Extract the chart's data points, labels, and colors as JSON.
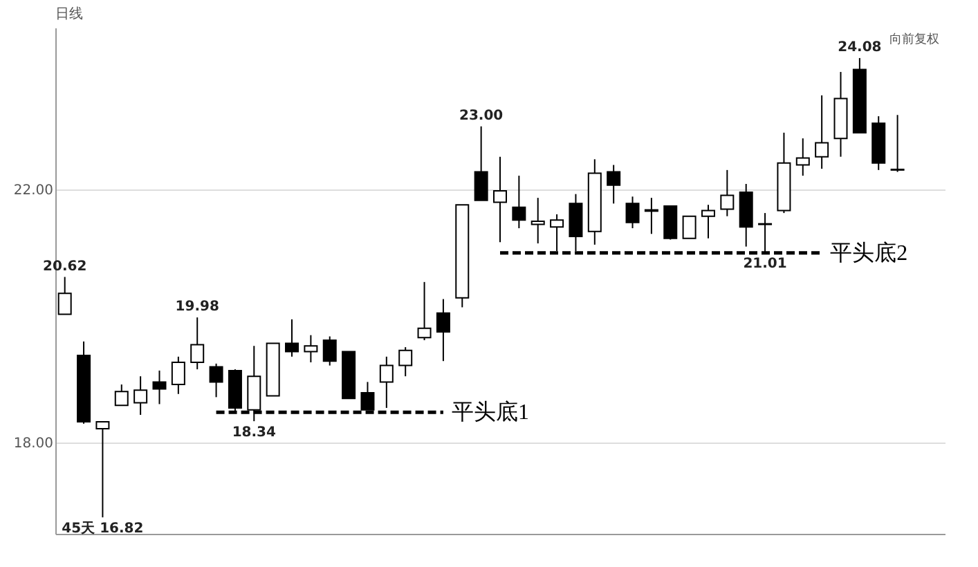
{
  "chart_data": {
    "type": "candlestick",
    "title": "日线",
    "categories": [
      null,
      null,
      null,
      null,
      null,
      null,
      null,
      null,
      null,
      null,
      null,
      null,
      null,
      null,
      null,
      null,
      null,
      null,
      null,
      null,
      null,
      null,
      null,
      null,
      null,
      null,
      null,
      null,
      null,
      null,
      null,
      null,
      null,
      null,
      null,
      null,
      null,
      null,
      null,
      null,
      null,
      null,
      null,
      null,
      null
    ],
    "ohlc": [
      [
        20.03,
        20.62,
        20.03,
        20.36
      ],
      [
        19.38,
        19.6,
        18.3,
        18.33
      ],
      [
        18.22,
        18.33,
        16.82,
        18.33
      ],
      [
        18.59,
        18.92,
        18.59,
        18.81
      ],
      [
        18.63,
        19.05,
        18.44,
        18.83
      ],
      [
        18.96,
        19.14,
        18.61,
        18.85
      ],
      [
        18.92,
        19.36,
        18.77,
        19.27
      ],
      [
        19.27,
        19.98,
        19.16,
        19.55
      ],
      [
        19.2,
        19.25,
        18.72,
        18.96
      ],
      [
        19.14,
        19.16,
        18.5,
        18.55
      ],
      [
        18.52,
        19.53,
        18.34,
        19.05
      ],
      [
        18.74,
        19.57,
        18.74,
        19.57
      ],
      [
        19.57,
        19.95,
        19.36,
        19.44
      ],
      [
        19.44,
        19.7,
        19.27,
        19.53
      ],
      [
        19.62,
        19.68,
        19.22,
        19.29
      ],
      [
        19.44,
        19.44,
        18.7,
        18.7
      ],
      [
        18.79,
        18.96,
        18.52,
        18.52
      ],
      [
        18.96,
        19.36,
        18.55,
        19.22
      ],
      [
        19.22,
        19.51,
        19.05,
        19.46
      ],
      [
        19.66,
        20.54,
        19.62,
        19.81
      ],
      [
        20.05,
        20.27,
        19.29,
        19.75
      ],
      [
        20.29,
        21.76,
        20.14,
        21.76
      ],
      [
        22.28,
        23.0,
        21.83,
        21.83
      ],
      [
        21.8,
        22.52,
        21.17,
        21.98
      ],
      [
        21.72,
        22.22,
        21.39,
        21.52
      ],
      [
        21.45,
        21.87,
        21.15,
        21.5
      ],
      [
        21.41,
        21.61,
        21.03,
        21.52
      ],
      [
        21.78,
        21.93,
        21.03,
        21.26
      ],
      [
        21.34,
        22.48,
        21.13,
        22.26
      ],
      [
        22.28,
        22.39,
        21.78,
        22.07
      ],
      [
        21.78,
        21.89,
        21.39,
        21.48
      ],
      [
        21.66,
        21.87,
        21.3,
        21.68
      ],
      [
        21.74,
        21.74,
        21.21,
        21.23
      ],
      [
        21.23,
        21.58,
        21.23,
        21.58
      ],
      [
        21.58,
        21.76,
        21.23,
        21.67
      ],
      [
        21.69,
        22.31,
        21.58,
        21.91
      ],
      [
        21.96,
        22.09,
        21.1,
        21.41
      ],
      [
        21.46,
        21.63,
        21.01,
        21.45
      ],
      [
        21.67,
        22.9,
        21.63,
        22.42
      ],
      [
        22.39,
        22.81,
        22.22,
        22.5
      ],
      [
        22.52,
        23.49,
        22.33,
        22.74
      ],
      [
        22.81,
        23.86,
        22.52,
        23.44
      ],
      [
        23.9,
        24.08,
        22.9,
        22.9
      ],
      [
        23.05,
        23.16,
        22.31,
        22.42
      ],
      [
        22.32,
        23.18,
        22.28,
        22.31
      ]
    ],
    "series": [
      {
        "type": "line",
        "name": "平头底1",
        "values": [
          null,
          null,
          null,
          null,
          null,
          null,
          null,
          null,
          18.48,
          18.48,
          18.48,
          18.48,
          18.48,
          18.48,
          18.48,
          18.48,
          18.48,
          18.48,
          18.48,
          18.48,
          18.48,
          null,
          null,
          null,
          null,
          null,
          null,
          null,
          null,
          null,
          null,
          null,
          null,
          null,
          null,
          null,
          null,
          null,
          null,
          null,
          null,
          null,
          null,
          null,
          null
        ],
        "color": "#000000",
        "line_style": "dashed"
      },
      {
        "type": "line",
        "name": "平头底2",
        "values": [
          null,
          null,
          null,
          null,
          null,
          null,
          null,
          null,
          null,
          null,
          null,
          null,
          null,
          null,
          null,
          null,
          null,
          null,
          null,
          null,
          null,
          null,
          null,
          21.0,
          21.0,
          21.0,
          21.0,
          21.0,
          21.0,
          21.0,
          21.0,
          21.0,
          21.0,
          21.0,
          21.0,
          21.0,
          21.0,
          21.0,
          21.0,
          21.0,
          21.0,
          null,
          null,
          null,
          null
        ],
        "color": "#000000",
        "line_style": "dashed"
      }
    ],
    "ylim": [
      16.56,
      24.56
    ],
    "yticks": [
      {
        "value": 18,
        "label": "18.00"
      },
      {
        "value": 22,
        "label": "22.00"
      }
    ],
    "grid": "y",
    "tick_labels": "y",
    "annotations": [
      "向前复权",
      {
        "text": "20.62",
        "y": 20.62
      },
      {
        "text": "19.98",
        "y": 19.98
      },
      {
        "text": "18.34",
        "y": 18.34
      },
      {
        "text": "23.00",
        "y": 23.0
      },
      {
        "text": "24.08",
        "y": 24.08
      },
      {
        "text": "21.01",
        "y": 21.01
      },
      {
        "text": "45天 16.82",
        "y": 16.82
      }
    ]
  }
}
